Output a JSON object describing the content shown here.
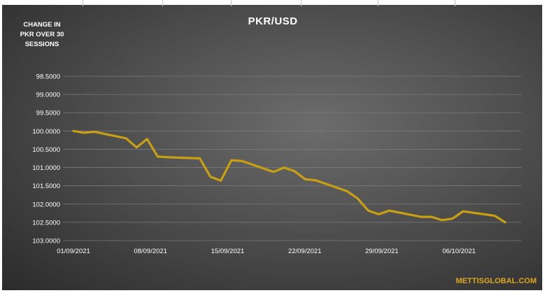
{
  "brand": "METTISGLOBAL.COM",
  "chart_data": {
    "type": "line",
    "title": "PKR/USD",
    "ylabel_lines": [
      "CHANGE IN",
      "PKR OVER 30",
      "SESSIONS"
    ],
    "xlabel": "",
    "ylim": [
      98.5,
      103.0
    ],
    "y_reversed": true,
    "yticks": [
      "98.5000",
      "99.0000",
      "99.5000",
      "100.0000",
      "100.5000",
      "101.0000",
      "101.5000",
      "102.0000",
      "102.5000",
      "103.0000"
    ],
    "x_tick_labels": [
      "01/09/2021",
      "08/09/2021",
      "15/09/2021",
      "22/09/2021",
      "29/09/2021",
      "06/10/2021"
    ],
    "x_tick_dates": [
      "2021-09-01",
      "2021-09-08",
      "2021-09-15",
      "2021-09-22",
      "2021-09-29",
      "2021-10-06"
    ],
    "x_range": [
      "2021-09-01",
      "2021-10-10"
    ],
    "grid": true,
    "line_color": "#c8a012",
    "series": [
      {
        "x": [
          "2021-09-01",
          "2021-09-02",
          "2021-09-03",
          "2021-09-06",
          "2021-09-07",
          "2021-09-08",
          "2021-09-09",
          "2021-09-10",
          "2021-09-13",
          "2021-09-14",
          "2021-09-15",
          "2021-09-16",
          "2021-09-17",
          "2021-09-20",
          "2021-09-21",
          "2021-09-22",
          "2021-09-23",
          "2021-09-24",
          "2021-09-27",
          "2021-09-28",
          "2021-09-29",
          "2021-09-30",
          "2021-10-01",
          "2021-10-04",
          "2021-10-05",
          "2021-10-06",
          "2021-10-07",
          "2021-10-08",
          "2021-10-11",
          "2021-10-12"
        ],
        "values": [
          100.0,
          100.05,
          100.02,
          100.2,
          100.45,
          100.22,
          100.7,
          100.72,
          100.75,
          101.25,
          101.36,
          100.8,
          100.82,
          101.12,
          101.0,
          101.1,
          101.32,
          101.35,
          101.65,
          101.85,
          102.18,
          102.28,
          102.18,
          102.35,
          102.35,
          102.44,
          102.4,
          102.2,
          102.32,
          102.5
        ]
      }
    ]
  }
}
